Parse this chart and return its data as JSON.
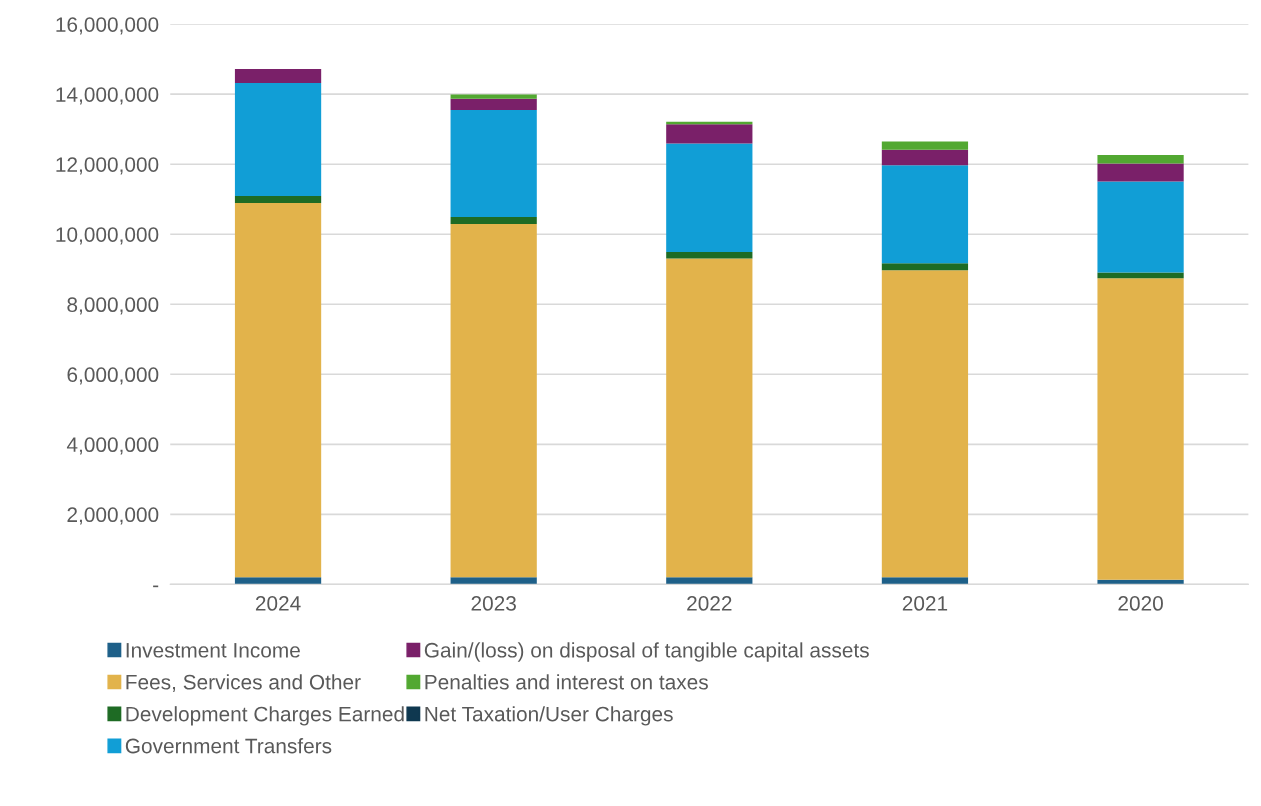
{
  "chart_data": {
    "type": "bar",
    "stacked": true,
    "categories": [
      "2024",
      "2023",
      "2022",
      "2021",
      "2020"
    ],
    "series": [
      {
        "name": "Investment Income",
        "color": "#1e6089",
        "values": [
          200000,
          200000,
          200000,
          200000,
          130000
        ]
      },
      {
        "name": "Fees, Services and Other",
        "color": "#e2b34b",
        "values": [
          10690000,
          10090000,
          9110000,
          8770000,
          8610000
        ]
      },
      {
        "name": "Development Charges Earned",
        "color": "#1e6b24",
        "values": [
          200000,
          200000,
          180000,
          200000,
          170000
        ]
      },
      {
        "name": "Government Transfers",
        "color": "#119ed6",
        "values": [
          3230000,
          3060000,
          3100000,
          2800000,
          2600000
        ]
      },
      {
        "name": "Gain/(loss) on disposal of tangible capital assets",
        "color": "#7a2069",
        "values": [
          400000,
          320000,
          550000,
          440000,
          510000
        ]
      },
      {
        "name": "Penalties and interest on taxes",
        "color": "#52a831",
        "values": [
          0,
          120000,
          70000,
          240000,
          240000
        ]
      },
      {
        "name": "Net Taxation/User Charges",
        "color": "#0f3850",
        "values": [
          0,
          0,
          0,
          0,
          0
        ]
      }
    ],
    "ylim": [
      0,
      16000000
    ],
    "yticks": [
      {
        "value": 0,
        "label": "-"
      },
      {
        "value": 2000000,
        "label": "2,000,000"
      },
      {
        "value": 4000000,
        "label": "4,000,000"
      },
      {
        "value": 6000000,
        "label": "6,000,000"
      },
      {
        "value": 8000000,
        "label": "8,000,000"
      },
      {
        "value": 10000000,
        "label": "10,000,000"
      },
      {
        "value": 12000000,
        "label": "12,000,000"
      },
      {
        "value": 14000000,
        "label": "14,000,000"
      },
      {
        "value": 16000000,
        "label": "16,000,000"
      }
    ],
    "grid": "y",
    "legend": "bottom"
  }
}
